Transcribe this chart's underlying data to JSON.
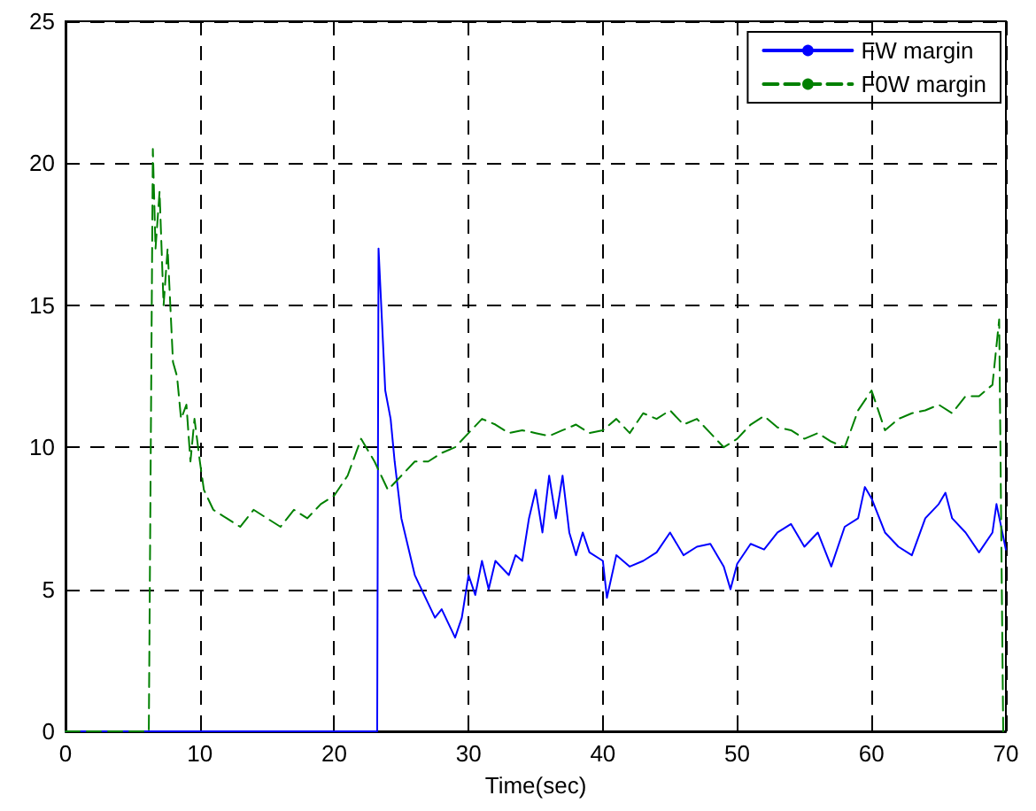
{
  "chart_data": {
    "type": "line",
    "xlabel": "Time(sec)",
    "xlim": [
      0,
      70
    ],
    "xticks": [
      0,
      10,
      20,
      30,
      40,
      50,
      60,
      70
    ],
    "ylim": [
      0,
      25
    ],
    "yticks": [
      0,
      5,
      10,
      15,
      20,
      25
    ],
    "grid": true,
    "legend": "top right",
    "marker": "none",
    "series": [
      {
        "name": "FW margin",
        "color": "#0000ff",
        "line_style": "solid",
        "x": [
          0,
          23.2,
          23.3,
          23.8,
          24.2,
          24.5,
          25,
          25.5,
          26,
          26.5,
          27,
          27.5,
          28,
          28.5,
          29,
          29.5,
          30,
          30.5,
          31,
          31.5,
          32,
          33,
          33.5,
          34,
          34.5,
          35,
          35.5,
          36,
          36.5,
          37,
          37.5,
          38,
          38.5,
          39,
          40,
          40.3,
          41,
          42,
          43,
          44,
          45,
          46,
          47,
          48,
          49,
          49.5,
          50,
          51,
          52,
          53,
          54,
          55,
          56,
          57,
          58,
          59,
          59.5,
          60,
          61,
          62,
          63,
          64,
          65,
          65.5,
          66,
          67,
          68,
          69,
          69.3,
          70
        ],
        "values": [
          0,
          0,
          17,
          12,
          11,
          9.5,
          7.5,
          6.5,
          5.5,
          5,
          4.5,
          4,
          4.3,
          3.8,
          3.3,
          4,
          5.5,
          4.8,
          6,
          5,
          6,
          5.5,
          6.2,
          6,
          7.5,
          8.5,
          7,
          9,
          7.5,
          9,
          7,
          6.2,
          7,
          6.3,
          6,
          4.7,
          6.2,
          5.8,
          6,
          6.3,
          7,
          6.2,
          6.5,
          6.6,
          5.8,
          5,
          5.9,
          6.6,
          6.4,
          7,
          7.3,
          6.5,
          7,
          5.8,
          7.2,
          7.5,
          8.6,
          8.2,
          7,
          6.5,
          6.2,
          7.5,
          8,
          8.4,
          7.5,
          7,
          6.3,
          7,
          8,
          6.4
        ]
      },
      {
        "name": "F0W margin",
        "color": "#008000",
        "line_style": "dashed",
        "x": [
          0,
          6.2,
          6.5,
          6.7,
          7,
          7.3,
          7.6,
          8,
          8.3,
          8.6,
          9,
          9.3,
          9.6,
          10,
          10.3,
          11,
          12,
          13,
          14,
          15,
          16,
          17,
          18,
          19,
          20,
          21,
          22,
          23,
          24,
          25,
          26,
          27,
          28,
          29,
          30,
          31,
          32,
          33,
          34,
          35,
          36,
          37,
          38,
          39,
          40,
          41,
          42,
          43,
          44,
          45,
          46,
          47,
          48,
          49,
          50,
          51,
          52,
          53,
          54,
          55,
          56,
          57,
          58,
          59,
          60,
          61,
          62,
          63,
          64,
          65,
          66,
          67,
          68,
          69,
          69.5,
          69.8
        ],
        "values": [
          0,
          0,
          20.5,
          17,
          19,
          15,
          17,
          13,
          12.5,
          11,
          11.5,
          9.5,
          11,
          9.5,
          8.5,
          7.8,
          7.5,
          7.2,
          7.8,
          7.5,
          7.2,
          7.8,
          7.5,
          8,
          8.3,
          9,
          10.3,
          9.5,
          8.5,
          9,
          9.5,
          9.5,
          9.8,
          10,
          10.5,
          11,
          10.8,
          10.5,
          10.6,
          10.5,
          10.4,
          10.6,
          10.8,
          10.5,
          10.6,
          11,
          10.5,
          11.2,
          11,
          11.3,
          10.8,
          11,
          10.5,
          10,
          10.3,
          10.8,
          11.1,
          10.7,
          10.6,
          10.3,
          10.5,
          10.2,
          10,
          11.3,
          12,
          10.6,
          11,
          11.2,
          11.3,
          11.5,
          11.2,
          11.8,
          11.8,
          12.2,
          14.5,
          0
        ]
      }
    ]
  }
}
